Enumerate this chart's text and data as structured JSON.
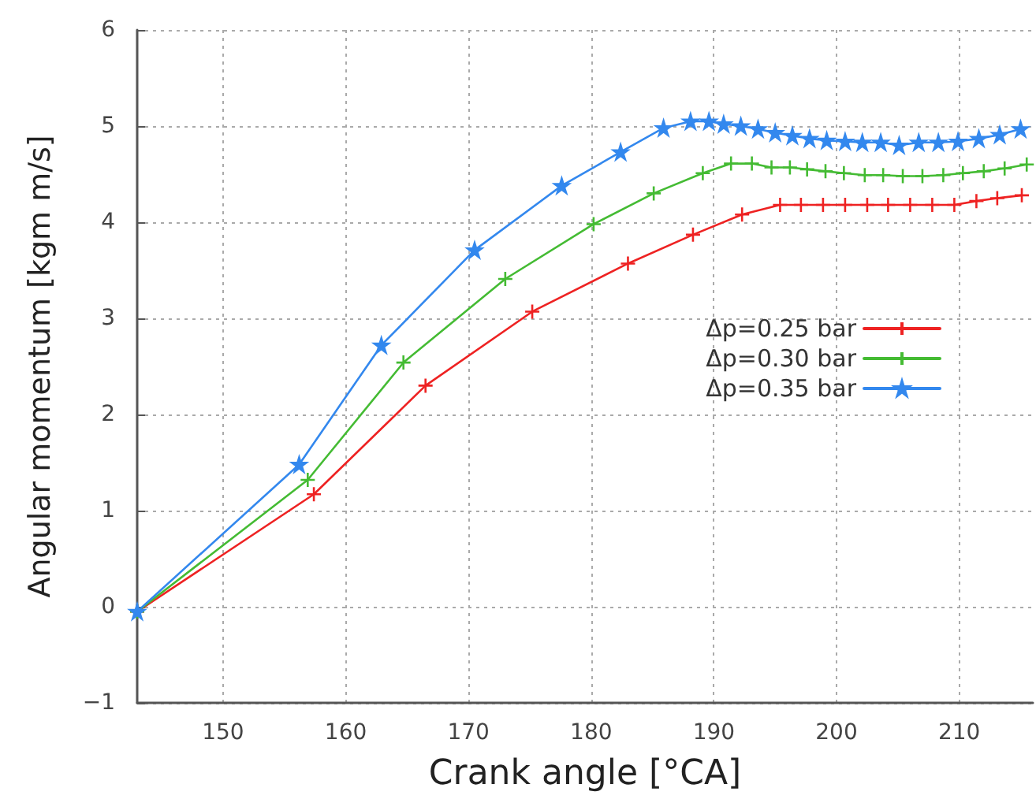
{
  "chart_data": {
    "type": "line",
    "xlabel": "Crank angle [°CA]",
    "ylabel": "Angular momentum [kgm m/s]",
    "xlim": [
      143,
      216
    ],
    "xticks": [
      150,
      160,
      170,
      180,
      190,
      200,
      210
    ],
    "ylim": [
      -1,
      6
    ],
    "yticks": [
      -1,
      0,
      1,
      2,
      3,
      4,
      5,
      6
    ],
    "grid": true,
    "legend": "right",
    "marker": "cross",
    "series": [
      {
        "name": "Δp=0.25 bar",
        "color": "#ee2222",
        "x": [
          143,
          157.4,
          166.5,
          175.2,
          183.0,
          188.3,
          192.3,
          195.4,
          197.1,
          198.9,
          200.7,
          202.5,
          204.2,
          206.0,
          207.8,
          209.6,
          211.4,
          213.1,
          215.1
        ],
        "values": [
          -0.05,
          1.17,
          2.3,
          3.07,
          3.57,
          3.87,
          4.08,
          4.18,
          4.18,
          4.18,
          4.18,
          4.18,
          4.18,
          4.18,
          4.18,
          4.18,
          4.22,
          4.25,
          4.28
        ]
      },
      {
        "name": "Δp=0.30 bar",
        "color": "#44bb33",
        "x": [
          143,
          156.9,
          164.7,
          173.0,
          180.2,
          185.1,
          189.1,
          191.4,
          193.1,
          194.7,
          196.2,
          197.6,
          199.1,
          200.6,
          202.3,
          203.8,
          205.4,
          207.0,
          208.7,
          210.3,
          212.0,
          213.7,
          215.5
        ],
        "values": [
          -0.05,
          1.32,
          2.54,
          3.41,
          3.98,
          4.3,
          4.51,
          4.61,
          4.61,
          4.57,
          4.57,
          4.55,
          4.53,
          4.51,
          4.49,
          4.49,
          4.48,
          4.48,
          4.49,
          4.51,
          4.53,
          4.56,
          4.6
        ]
      },
      {
        "name": "Δp=0.35 bar",
        "color": "#3388ee",
        "marker": "star",
        "x": [
          143,
          156.2,
          162.9,
          170.5,
          177.6,
          182.4,
          185.9,
          188.1,
          189.6,
          190.8,
          192.2,
          193.6,
          195.0,
          196.4,
          197.8,
          199.2,
          200.7,
          202.1,
          203.6,
          205.1,
          206.7,
          208.3,
          209.9,
          211.6,
          213.3,
          215.0
        ],
        "values": [
          -0.05,
          1.48,
          2.72,
          3.71,
          4.38,
          4.73,
          4.98,
          5.05,
          5.05,
          5.02,
          5.0,
          4.97,
          4.93,
          4.9,
          4.87,
          4.85,
          4.84,
          4.83,
          4.83,
          4.8,
          4.83,
          4.83,
          4.84,
          4.87,
          4.91,
          4.97
        ]
      }
    ]
  }
}
